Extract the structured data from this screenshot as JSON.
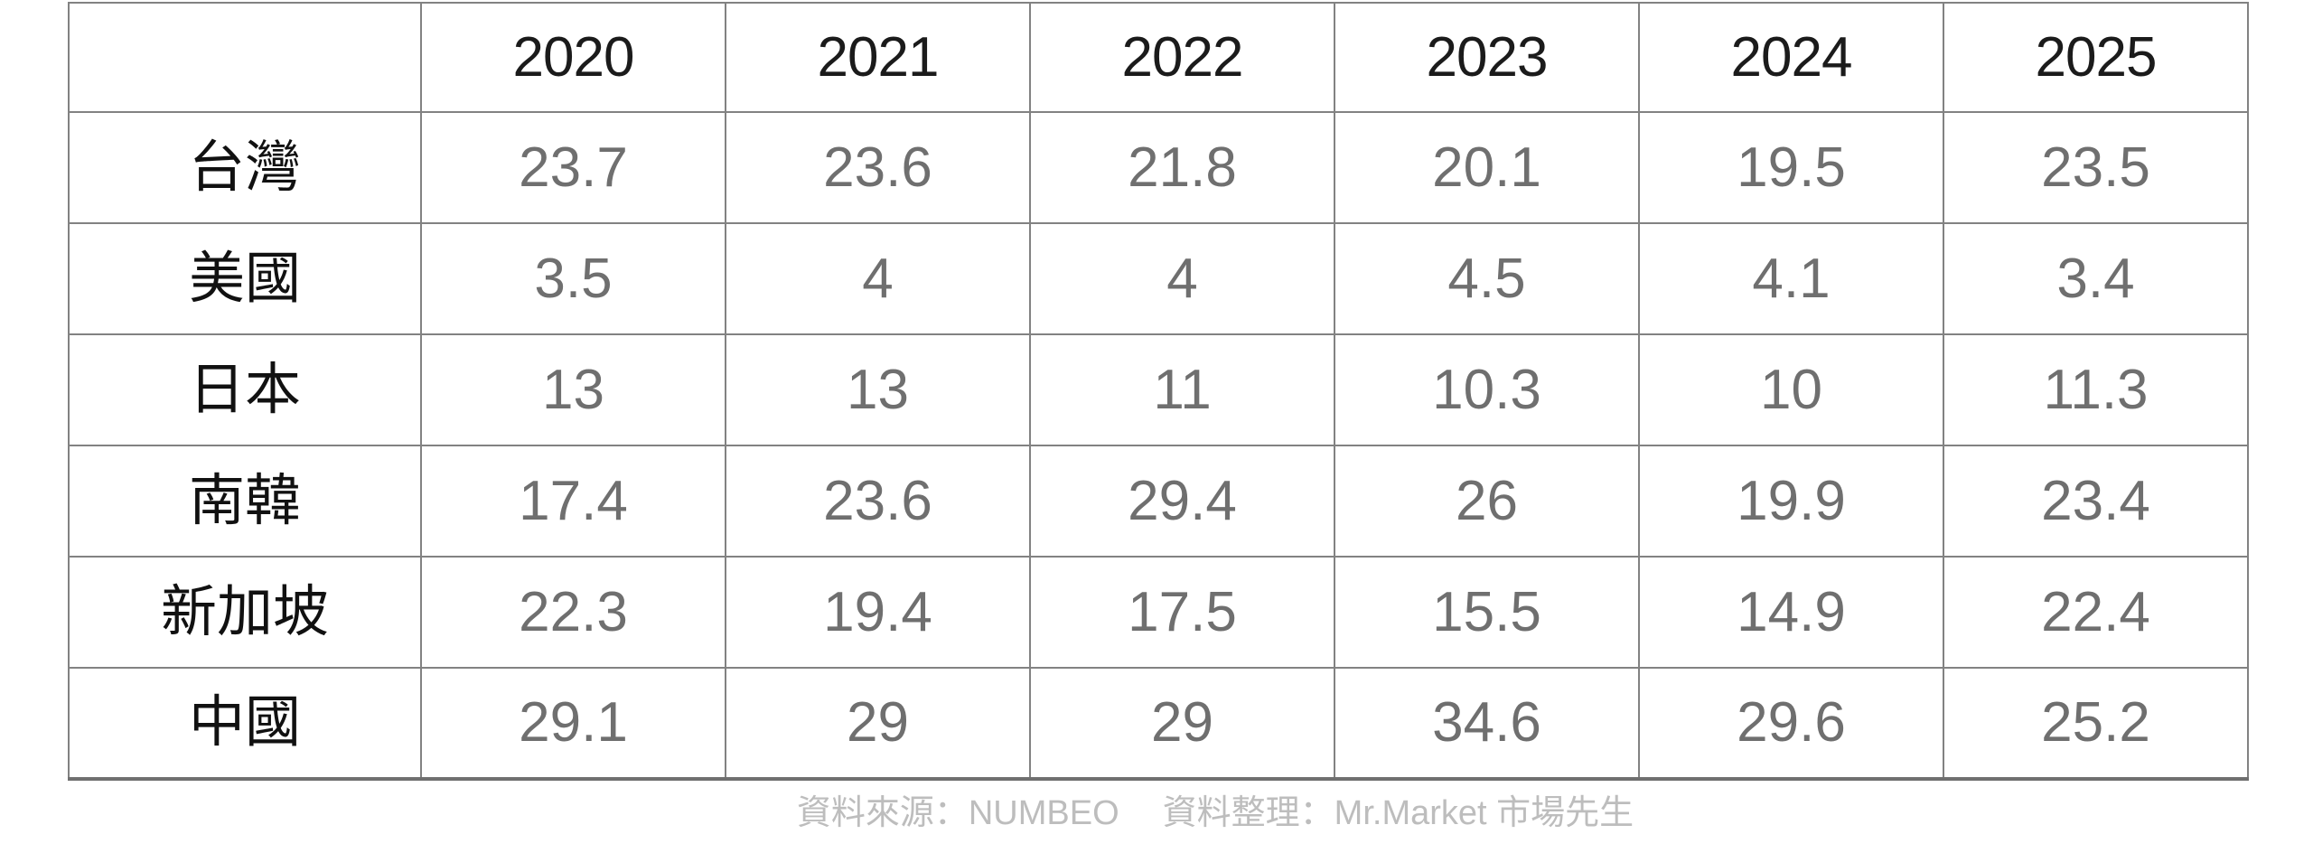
{
  "table": {
    "columns": [
      "",
      "2020",
      "2021",
      "2022",
      "2023",
      "2024",
      "2025"
    ],
    "rows": [
      {
        "label": "台灣",
        "values": [
          "23.7",
          "23.6",
          "21.8",
          "20.1",
          "19.5",
          "23.5"
        ]
      },
      {
        "label": "美國",
        "values": [
          "3.5",
          "4",
          "4",
          "4.5",
          "4.1",
          "3.4"
        ]
      },
      {
        "label": "日本",
        "values": [
          "13",
          "13",
          "11",
          "10.3",
          "10",
          "11.3"
        ]
      },
      {
        "label": "南韓",
        "values": [
          "17.4",
          "23.6",
          "29.4",
          "26",
          "19.9",
          "23.4"
        ]
      },
      {
        "label": "新加坡",
        "values": [
          "22.3",
          "19.4",
          "17.5",
          "15.5",
          "14.9",
          "22.4"
        ]
      },
      {
        "label": "中國",
        "values": [
          "29.1",
          "29",
          "29",
          "34.6",
          "29.6",
          "25.2"
        ]
      }
    ]
  },
  "footer": {
    "source_label": "資料來源：",
    "source_value": "NUMBEO",
    "compiled_label": "資料整理：",
    "compiled_value": "Mr.Market 市場先生"
  },
  "colors": {
    "grid_line": "#828282",
    "outer_border": "#6f6f6f",
    "year_header_text": "#1b1b1b",
    "row_label_text": "#111111",
    "value_text": "#6f6f6f",
    "footer_text": "#bdbdbd",
    "background": "#ffffff"
  },
  "chart_data": {
    "type": "table",
    "title": "",
    "categories": [
      "2020",
      "2021",
      "2022",
      "2023",
      "2024",
      "2025"
    ],
    "series": [
      {
        "name": "台灣",
        "values": [
          23.7,
          23.6,
          21.8,
          20.1,
          19.5,
          23.5
        ]
      },
      {
        "name": "美國",
        "values": [
          3.5,
          4,
          4,
          4.5,
          4.1,
          3.4
        ]
      },
      {
        "name": "日本",
        "values": [
          13,
          13,
          11,
          10.3,
          10,
          11.3
        ]
      },
      {
        "name": "南韓",
        "values": [
          17.4,
          23.6,
          29.4,
          26,
          19.9,
          23.4
        ]
      },
      {
        "name": "新加坡",
        "values": [
          22.3,
          19.4,
          17.5,
          15.5,
          14.9,
          22.4
        ]
      },
      {
        "name": "中國",
        "values": [
          29.1,
          29,
          29,
          34.6,
          29.6,
          25.2
        ]
      }
    ],
    "annotations": [
      "資料來源：NUMBEO",
      "資料整理：Mr.Market 市場先生"
    ]
  }
}
